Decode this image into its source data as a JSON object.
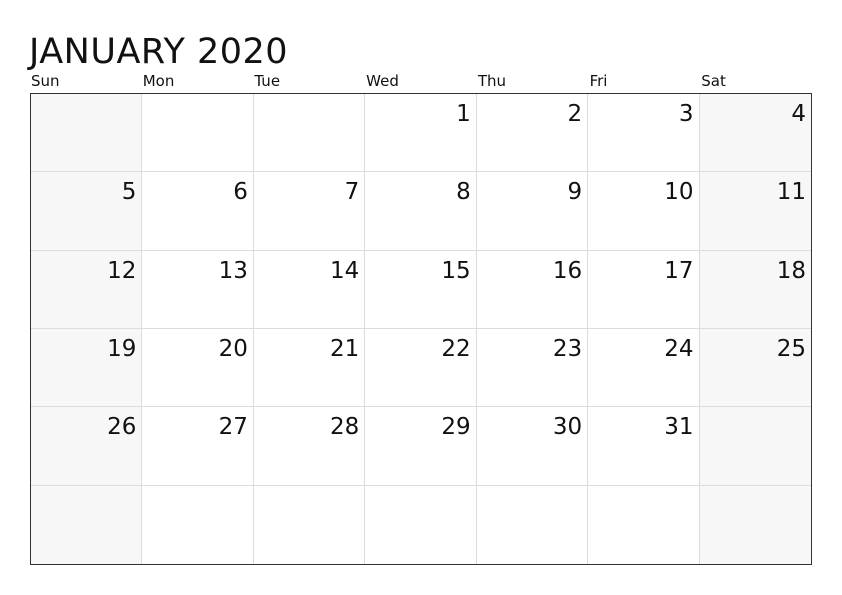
{
  "calendar": {
    "title": "JANUARY 2020",
    "weekdays": [
      "Sun",
      "Mon",
      "Tue",
      "Wed",
      "Thu",
      "Fri",
      "Sat"
    ],
    "weeks": [
      [
        "",
        "",
        "",
        "1",
        "2",
        "3",
        "4"
      ],
      [
        "5",
        "6",
        "7",
        "8",
        "9",
        "10",
        "11"
      ],
      [
        "12",
        "13",
        "14",
        "15",
        "16",
        "17",
        "18"
      ],
      [
        "19",
        "20",
        "21",
        "22",
        "23",
        "24",
        "25"
      ],
      [
        "26",
        "27",
        "28",
        "29",
        "30",
        "31",
        ""
      ],
      [
        "",
        "",
        "",
        "",
        "",
        "",
        ""
      ]
    ]
  }
}
